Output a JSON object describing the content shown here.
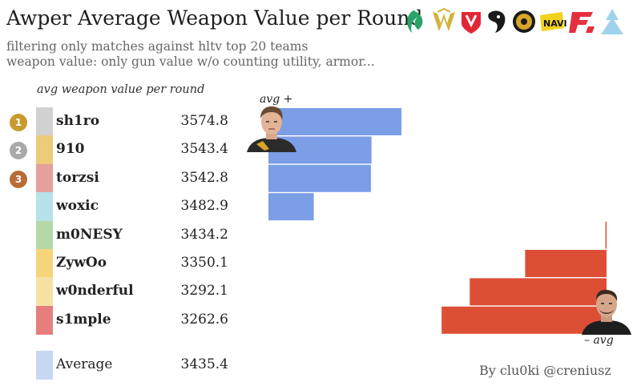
{
  "title": "Awper Average Weapon Value per Round",
  "subtitle_lines": [
    "filtering only matches against hltv top 20 teams",
    "weapon value: only gun value w/o counting utility, armor..."
  ],
  "column_header": "avg weapon value per round",
  "team_logos": [
    "falcons-logo",
    "vitality-logo",
    "mouz-logo",
    "spirit-logo",
    "mongolz-logo",
    "navi-logo",
    "faze-logo",
    "liquid-logo"
  ],
  "ranks": [
    "1",
    "2",
    "3"
  ],
  "annotations": {
    "above": "avg +",
    "below": "– avg"
  },
  "footer": "By clu0ki @creniusz",
  "colors": {
    "above_avg": "#7b9ee6",
    "below_avg": "#dd4f35",
    "gold": "#c99a2e",
    "silver": "#a9a9a9",
    "bronze": "#b86d38"
  },
  "players": [
    {
      "name": "sh1ro",
      "value": "3574.8",
      "swatch": "#d1d1d1"
    },
    {
      "name": "910",
      "value": "3543.4",
      "swatch": "#eccb79"
    },
    {
      "name": "torzsi",
      "value": "3542.8",
      "swatch": "#e3a09c"
    },
    {
      "name": "woxic",
      "value": "3482.9",
      "swatch": "#b7e2ea"
    },
    {
      "name": "m0NESY",
      "value": "3434.2",
      "swatch": "#b5d8a9"
    },
    {
      "name": "ZywOo",
      "value": "3350.1",
      "swatch": "#f6d47a"
    },
    {
      "name": "w0nderful",
      "value": "3292.1",
      "swatch": "#f6e2a5"
    },
    {
      "name": "s1mple",
      "value": "3262.6",
      "swatch": "#e67e7e"
    }
  ],
  "average": {
    "name": "Average",
    "value": "3435.4",
    "swatch": "#c7d8f0"
  },
  "chart_data": {
    "type": "bar",
    "orientation": "horizontal",
    "baseline": 3435.4,
    "categories": [
      "sh1ro",
      "910",
      "torzsi",
      "woxic",
      "m0NESY",
      "ZywOo",
      "w0nderful",
      "s1mple"
    ],
    "values": [
      3574.8,
      3543.4,
      3542.8,
      3482.9,
      3434.2,
      3350.1,
      3292.1,
      3262.6
    ],
    "average": 3435.4,
    "title": "Awper Average Weapon Value per Round"
  }
}
